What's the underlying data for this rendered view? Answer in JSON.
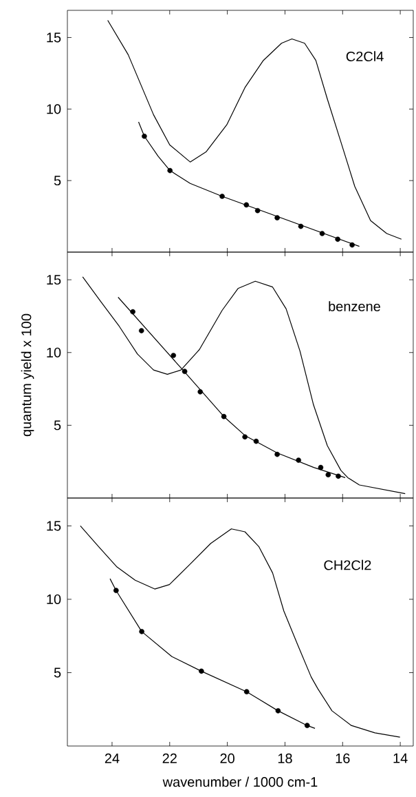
{
  "chart_data": [
    {
      "type": "line",
      "xlim": [
        25.55,
        13.55
      ],
      "ylim": [
        0,
        16.9
      ],
      "xticks": [
        24,
        22,
        20,
        18,
        16,
        14
      ],
      "yticks": [
        5,
        10,
        15
      ],
      "tick_labels": "y",
      "annotations": [
        "C2Cl4"
      ],
      "series": [
        {
          "marker": "none",
          "color": "#000000",
          "x": [
            24.15,
            23.44,
            22.56,
            22.0,
            21.29,
            20.74,
            20.02,
            19.39,
            18.75,
            18.12,
            17.76,
            17.32,
            16.93,
            16.53,
            16.06,
            15.58,
            15.03,
            14.47,
            13.96
          ],
          "values": [
            16.2,
            13.8,
            9.6,
            7.5,
            6.3,
            7.0,
            8.9,
            11.5,
            13.4,
            14.6,
            14.9,
            14.6,
            13.4,
            10.7,
            7.7,
            4.6,
            2.2,
            1.3,
            0.9
          ]
        },
        {
          "type": "scatter",
          "marker": "circle",
          "color": "#000000",
          "x": [
            22.88,
            21.99,
            20.18,
            19.34,
            18.95,
            18.27,
            17.45,
            16.71,
            16.17,
            15.67
          ],
          "values": [
            8.1,
            5.7,
            3.9,
            3.3,
            2.9,
            2.4,
            1.8,
            1.3,
            0.9,
            0.5
          ]
        },
        {
          "marker": "none",
          "color": "#000000",
          "x": [
            23.08,
            22.88,
            22.4,
            21.99,
            21.29,
            20.18,
            15.42
          ],
          "values": [
            9.1,
            8.1,
            6.7,
            5.7,
            4.8,
            3.9,
            0.4
          ]
        }
      ]
    },
    {
      "type": "line",
      "xlim": [
        25.55,
        13.55
      ],
      "ylim": [
        0,
        16.9
      ],
      "xticks": [
        24,
        22,
        20,
        18,
        16,
        14
      ],
      "yticks": [
        5,
        10,
        15
      ],
      "tick_labels": "y",
      "ylabel": "quantum yield x 100",
      "annotations": [
        "benzene"
      ],
      "series": [
        {
          "marker": "none",
          "color": "#000000",
          "x": [
            25.02,
            24.39,
            23.75,
            23.12,
            22.56,
            22.08,
            21.61,
            20.97,
            20.18,
            19.63,
            19.03,
            18.43,
            17.96,
            17.48,
            17.01,
            16.53,
            16.06,
            15.82,
            15.42,
            13.83
          ],
          "values": [
            15.2,
            13.5,
            11.8,
            9.9,
            8.8,
            8.5,
            8.8,
            10.2,
            12.9,
            14.4,
            14.9,
            14.5,
            13.0,
            10.1,
            6.4,
            3.6,
            1.9,
            1.4,
            0.9,
            0.3
          ]
        },
        {
          "type": "scatter",
          "marker": "circle",
          "color": "#000000",
          "x": [
            23.28,
            22.98,
            21.87,
            21.48,
            20.94,
            20.12,
            19.39,
            19.0,
            18.27,
            17.53,
            16.76,
            16.5,
            16.15
          ],
          "values": [
            12.8,
            11.5,
            9.8,
            8.7,
            7.3,
            5.6,
            4.2,
            3.9,
            3.0,
            2.6,
            2.1,
            1.6,
            1.5
          ]
        },
        {
          "marker": "none",
          "color": "#000000",
          "x": [
            23.79,
            21.5,
            20.12,
            19.39,
            18.27,
            17.0,
            15.91
          ],
          "values": [
            13.8,
            8.7,
            5.6,
            4.3,
            3.1,
            2.1,
            1.4
          ]
        }
      ]
    },
    {
      "type": "line",
      "xlim": [
        25.55,
        13.55
      ],
      "ylim": [
        0,
        16.9
      ],
      "xticks": [
        24,
        22,
        20,
        18,
        16,
        14
      ],
      "yticks": [
        5,
        10,
        15
      ],
      "xlabel": "wavenumber / 1000 cm-1",
      "annotations": [
        "CH2Cl2"
      ],
      "series": [
        {
          "marker": "none",
          "color": "#000000",
          "x": [
            25.1,
            24.47,
            23.83,
            23.2,
            22.52,
            22.01,
            21.29,
            20.58,
            19.86,
            19.39,
            18.91,
            18.43,
            18.04,
            17.56,
            17.09,
            16.86,
            16.37,
            15.7,
            14.88,
            14.01
          ],
          "values": [
            15.0,
            13.6,
            12.2,
            11.3,
            10.7,
            11.0,
            12.4,
            13.8,
            14.8,
            14.6,
            13.6,
            11.8,
            9.2,
            6.9,
            4.7,
            3.9,
            2.4,
            1.4,
            0.9,
            0.6
          ]
        },
        {
          "type": "scatter",
          "marker": "circle",
          "color": "#000000",
          "x": [
            23.86,
            22.97,
            20.9,
            19.33,
            18.24,
            17.23
          ],
          "values": [
            10.6,
            7.8,
            5.1,
            3.7,
            2.4,
            1.4
          ]
        },
        {
          "marker": "none",
          "color": "#000000",
          "x": [
            24.07,
            23.86,
            22.97,
            21.93,
            20.9,
            19.33,
            18.24,
            17.23,
            16.96
          ],
          "values": [
            11.4,
            10.6,
            7.8,
            6.1,
            5.1,
            3.7,
            2.4,
            1.4,
            1.2
          ]
        }
      ]
    }
  ]
}
